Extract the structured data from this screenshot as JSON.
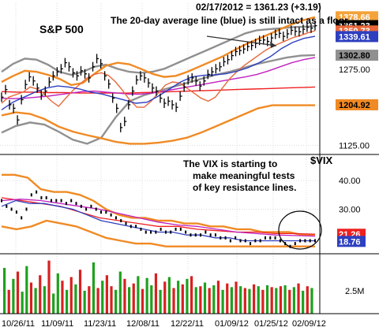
{
  "chart_data": [
    {
      "type": "line",
      "panel": "price",
      "title": "S&P 500",
      "header": "02/17/2012 = 1361.23 (+3.19)",
      "annotation": "The 20-day average line (blue) is still intact as a floor.",
      "ylim": [
        1110,
        1390
      ],
      "y_ticks": [
        1125.0,
        1275.0
      ],
      "y_tick_labels": [
        "1125.00",
        "1275.00"
      ],
      "right_labels": [
        {
          "text": "1378.66",
          "value": 1378.66,
          "color": "#f4a33a",
          "text_color": "#ffffff"
        },
        {
          "text": "1361.23",
          "value": 1361.23,
          "color": "#000000",
          "text_color": "#ffffff"
        },
        {
          "text": "1350.73",
          "value": 1350.73,
          "color": "#e8683a",
          "text_color": "#ffffff"
        },
        {
          "text": "1339.61",
          "value": 1339.61,
          "color": "#2e3fbf",
          "text_color": "#ffffff"
        },
        {
          "text": "1302.80",
          "value": 1302.8,
          "color": "#909090",
          "text_color": "#000000"
        },
        {
          "text": "1204.92",
          "value": 1204.92,
          "color": "#f08a24",
          "text_color": "#000000"
        }
      ],
      "series": [
        {
          "name": "Price",
          "style": "bars",
          "color": "#000000",
          "values": [
            1220,
            1235,
            1205,
            1198,
            1175,
            1215,
            1245,
            1260,
            1252,
            1238,
            1224,
            1232,
            1250,
            1262,
            1270,
            1276,
            1288,
            1280,
            1268,
            1262,
            1272,
            1266,
            1258,
            1280,
            1296,
            1286,
            1262,
            1246,
            1218,
            1198,
            1160,
            1172,
            1205,
            1232,
            1254,
            1262,
            1258,
            1248,
            1238,
            1232,
            1218,
            1208,
            1212,
            1205,
            1200,
            1222,
            1240,
            1254,
            1258,
            1252,
            1242,
            1252,
            1265,
            1270,
            1276,
            1280,
            1290,
            1294,
            1302,
            1310,
            1312,
            1315,
            1320,
            1322,
            1326,
            1332,
            1333,
            1330,
            1337,
            1344,
            1346,
            1340,
            1345,
            1352,
            1350,
            1349,
            1354,
            1358,
            1356,
            1361
          ]
        },
        {
          "name": "20-day average",
          "color": "#2e3fbf",
          "values": [
            1195,
            1210,
            1220,
            1230,
            1238,
            1242,
            1240,
            1236,
            1230,
            1226,
            1220,
            1214,
            1208,
            1210,
            1222,
            1236,
            1250,
            1260,
            1263,
            1264,
            1266,
            1271,
            1278,
            1288,
            1300,
            1316,
            1328,
            1336,
            1340
          ]
        },
        {
          "name": "10-day average",
          "color": "#e8683a",
          "values": [
            1208,
            1220,
            1225,
            1230,
            1240,
            1236,
            1226,
            1212,
            1202,
            1218,
            1233,
            1246,
            1258,
            1265,
            1268,
            1263,
            1250,
            1233,
            1214,
            1200,
            1200,
            1212,
            1228,
            1244,
            1250,
            1248,
            1238,
            1228,
            1218,
            1212,
            1220,
            1238,
            1256,
            1270,
            1282,
            1292,
            1302,
            1312,
            1320,
            1326,
            1332,
            1338,
            1342,
            1347,
            1351
          ]
        },
        {
          "name": "50-day average",
          "color": "#c020c0",
          "values": [
            1218,
            1217,
            1218,
            1220,
            1222,
            1225,
            1228,
            1231,
            1232,
            1230,
            1228,
            1226,
            1226,
            1228,
            1232,
            1236,
            1240,
            1244,
            1248,
            1252,
            1256,
            1260,
            1265,
            1272,
            1280,
            1288,
            1294,
            1298
          ]
        },
        {
          "name": "200-day average",
          "color": "#ef2020",
          "values": [
            1231,
            1230,
            1230,
            1229,
            1229,
            1228,
            1228,
            1228,
            1228,
            1229,
            1230,
            1231,
            1232,
            1233,
            1234,
            1235,
            1236,
            1237,
            1238,
            1239,
            1240
          ]
        },
        {
          "name": "Upper band 1",
          "color": "#f08a24",
          "values": [
            1250,
            1262,
            1272,
            1270,
            1264,
            1256,
            1244,
            1248,
            1266,
            1282,
            1288,
            1285,
            1276,
            1266,
            1260,
            1262,
            1270,
            1280,
            1290,
            1300,
            1312,
            1324,
            1334,
            1344,
            1354,
            1364,
            1372,
            1378
          ]
        },
        {
          "name": "Lower band 1",
          "color": "#f08a24",
          "values": [
            1184,
            1190,
            1187,
            1177,
            1162,
            1152,
            1145,
            1139,
            1132,
            1128,
            1128,
            1130,
            1134,
            1140,
            1150,
            1162,
            1174,
            1186,
            1198,
            1204,
            1204,
            1204,
            1204
          ]
        },
        {
          "name": "Upper band 2",
          "color": "#909090",
          "values": [
            1270,
            1286,
            1296,
            1294,
            1284,
            1270,
            1264,
            1270,
            1280,
            1284,
            1276,
            1270,
            1268,
            1270,
            1276,
            1286,
            1296,
            1306,
            1316,
            1326,
            1336,
            1346,
            1352,
            1354,
            1356,
            1358,
            1359,
            1360
          ]
        },
        {
          "name": "Lower band 2",
          "color": "#909090",
          "values": [
            1150,
            1163,
            1170,
            1166,
            1152,
            1136,
            1128,
            1140,
            1180,
            1212,
            1224,
            1232,
            1240,
            1248,
            1256,
            1264,
            1270,
            1278,
            1286,
            1292,
            1298,
            1302,
            1303
          ]
        }
      ]
    },
    {
      "type": "line",
      "panel": "vix",
      "title": "$VIX",
      "annotation": "The VIX is starting to make meaningful tests of key resistance lines.",
      "ylim": [
        15,
        48
      ],
      "y_ticks": [
        40.0,
        30.0
      ],
      "y_tick_labels": [
        "40.00",
        "30.00"
      ],
      "right_labels": [
        {
          "text": "21.26",
          "value": 21.26,
          "color": "#ef2020",
          "text_color": "#ffffff"
        },
        {
          "text": "18.76",
          "value": 18.76,
          "color": "#2e3fbf",
          "text_color": "#ffffff"
        }
      ],
      "series": [
        {
          "name": "VIX",
          "style": "dots",
          "color": "#000000",
          "values": [
            33,
            31,
            30,
            29,
            27,
            30,
            35,
            36,
            34,
            34,
            33,
            33,
            33,
            32,
            33,
            32,
            31,
            30,
            31,
            30,
            29,
            29,
            28,
            27,
            26,
            25,
            24,
            24,
            23,
            22,
            22,
            22,
            23,
            22,
            22,
            23,
            23,
            22,
            21,
            21,
            21,
            22,
            21,
            21,
            20,
            20,
            19,
            20,
            19,
            19,
            18,
            19,
            19,
            20,
            20,
            20,
            19,
            18,
            17,
            18,
            19,
            19,
            19,
            19
          ]
        },
        {
          "name": "Blue average",
          "color": "#2e3fbf",
          "values": [
            31,
            33,
            32,
            32,
            31,
            30,
            28,
            26,
            25,
            24,
            23,
            22,
            22,
            21,
            21,
            20,
            20,
            19,
            19,
            19,
            19,
            19,
            19
          ]
        },
        {
          "name": "Magenta average",
          "color": "#c020c0",
          "values": [
            33,
            33.5,
            33,
            32,
            31,
            30,
            28.5,
            27,
            25.5,
            24.5,
            24,
            23,
            22,
            21.5,
            21,
            20.8,
            20.6
          ]
        },
        {
          "name": "Red average",
          "color": "#ef2020",
          "values": [
            34,
            33,
            32,
            31,
            29,
            27,
            26,
            25,
            24,
            24,
            23,
            22.5,
            22,
            22,
            21.5,
            21.5,
            21.3
          ]
        },
        {
          "name": "Upper band",
          "color": "#f08a24",
          "values": [
            42,
            42,
            41,
            37,
            36,
            36,
            35,
            33,
            30,
            28,
            27,
            27,
            26,
            26,
            25,
            25,
            24,
            24,
            23,
            23,
            22,
            22,
            22,
            21,
            21
          ]
        },
        {
          "name": "Lower band",
          "color": "#f08a24",
          "values": [
            24,
            23,
            24,
            26,
            25,
            24,
            22,
            20,
            19,
            18,
            18,
            17,
            17,
            17,
            17,
            17,
            17,
            17,
            17,
            17,
            17,
            17
          ]
        }
      ]
    },
    {
      "type": "bar",
      "panel": "volume",
      "y_tick_labels": [
        "2.5M"
      ],
      "up_color": "#1fa01f",
      "down_color": "#d82020",
      "values": [
        5.0,
        2.6,
        3.8,
        4.6,
        2.4,
        5.2,
        3.4,
        2.8,
        4.2,
        3.0,
        5.8,
        2.2,
        4.4,
        3.6,
        2.6,
        4.0,
        3.2,
        4.8,
        2.5,
        3.0,
        5.6,
        2.8,
        3.6,
        4.2,
        3.0,
        2.6,
        4.6,
        3.8,
        2.9,
        3.3,
        4.1,
        2.7,
        3.9,
        3.1,
        4.4,
        2.6,
        3.5,
        4.0,
        2.8,
        3.6,
        3.2,
        3.8,
        4.1,
        2.9,
        3.0,
        3.4,
        2.8,
        3.1,
        3.6,
        2.6,
        3.3,
        2.9,
        3.5,
        3.0,
        2.8,
        2.7,
        3.2,
        3.0,
        2.6,
        3.1,
        2.9,
        2.8,
        3.0,
        3.1,
        2.6,
        2.9,
        3.3,
        2.5,
        3.0,
        2.8
      ],
      "colors": [
        "g",
        "r",
        "g",
        "r",
        "g",
        "g",
        "r",
        "g",
        "r",
        "g",
        "r",
        "g",
        "g",
        "r",
        "g",
        "r",
        "g",
        "r",
        "g",
        "r",
        "g",
        "r",
        "g",
        "r",
        "r",
        "g",
        "g",
        "r",
        "g",
        "r",
        "g",
        "r",
        "g",
        "g",
        "r",
        "g",
        "r",
        "g",
        "r",
        "g",
        "r",
        "g",
        "r",
        "g",
        "r",
        "g",
        "r",
        "g",
        "r",
        "g",
        "r",
        "g",
        "r",
        "g",
        "r",
        "g",
        "r",
        "g",
        "r",
        "g",
        "r",
        "g",
        "r",
        "g",
        "r",
        "g",
        "r",
        "g",
        "r",
        "g"
      ]
    }
  ],
  "x_axis": {
    "tick_labels": [
      "10/26/11",
      "11/09/11",
      "11/23/11",
      "12/08/11",
      "12/22/11",
      "01/09/12",
      "01/25/12",
      "02/09/12"
    ]
  }
}
